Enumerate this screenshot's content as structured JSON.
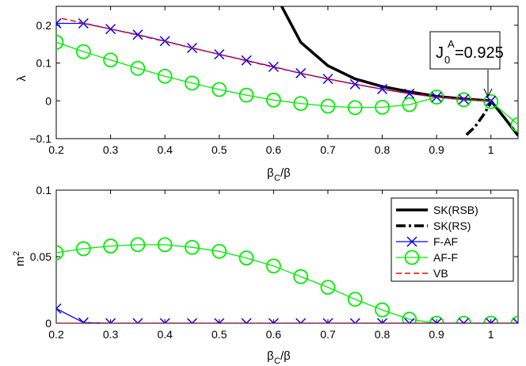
{
  "chart_data": [
    {
      "type": "line",
      "panel": "top",
      "xlabel_main": "β",
      "xlabel_sub": "C",
      "xlabel_tail": "/β",
      "ylabel": "λ",
      "xlim": [
        0.2,
        1.05
      ],
      "ylim": [
        -0.1,
        0.25
      ],
      "xticks": [
        0.2,
        0.3,
        0.4,
        0.5,
        0.6,
        0.7,
        0.8,
        0.9,
        1
      ],
      "xtick_labels": [
        "0.2",
        "0.3",
        "0.4",
        "0.5",
        "0.6",
        "0.7",
        "0.8",
        "0.9",
        "1"
      ],
      "yticks": [
        -0.1,
        0,
        0.1,
        0.2
      ],
      "ytick_labels": [
        "−0.1",
        "0",
        "0.1",
        "0.2"
      ],
      "annotation": {
        "main": "J",
        "sub": "0",
        "sup": "A",
        "tail": "=0.925",
        "x": 1.0,
        "y": 0.0,
        "text_x": 0.975,
        "text_y": 0.19
      },
      "series": [
        {
          "name": "SK(RSB)",
          "style": "solid-thick",
          "color": "#000000",
          "x": [
            0.615,
            0.65,
            0.7,
            0.75,
            0.8,
            0.85,
            0.9,
            0.95,
            1.0,
            1.025,
            1.05
          ],
          "y": [
            0.25,
            0.155,
            0.093,
            0.058,
            0.038,
            0.024,
            0.012,
            0.005,
            0.0,
            -0.045,
            -0.092
          ]
        },
        {
          "name": "SK(RS)",
          "style": "dashdot-thick",
          "color": "#000000",
          "x": [
            0.955,
            0.97,
            0.985,
            1.0
          ],
          "y": [
            -0.09,
            -0.07,
            -0.04,
            -0.005
          ]
        },
        {
          "name": "F-AF",
          "style": "x-marker",
          "color": "#0000ff",
          "x": [
            0.2,
            0.25,
            0.3,
            0.35,
            0.4,
            0.45,
            0.5,
            0.55,
            0.6,
            0.65,
            0.7,
            0.75,
            0.8,
            0.85,
            0.9,
            0.95,
            1.0
          ],
          "y": [
            0.205,
            0.205,
            0.19,
            0.175,
            0.158,
            0.14,
            0.123,
            0.107,
            0.09,
            0.073,
            0.058,
            0.044,
            0.031,
            0.019,
            0.01,
            0.004,
            0.0
          ]
        },
        {
          "name": "AF-F",
          "style": "o-marker",
          "color": "#00ee00",
          "x": [
            0.2,
            0.25,
            0.3,
            0.35,
            0.4,
            0.45,
            0.5,
            0.55,
            0.6,
            0.65,
            0.7,
            0.75,
            0.8,
            0.85,
            0.9,
            0.95,
            1.0,
            1.05
          ],
          "y": [
            0.155,
            0.13,
            0.108,
            0.086,
            0.065,
            0.047,
            0.03,
            0.015,
            0.002,
            -0.007,
            -0.014,
            -0.018,
            -0.017,
            -0.01,
            0.01,
            0.003,
            -0.002,
            -0.063
          ]
        },
        {
          "name": "VB",
          "style": "dashed",
          "color": "#ff0000",
          "x": [
            0.21,
            0.25,
            0.3,
            0.35,
            0.4,
            0.45,
            0.5,
            0.55,
            0.6,
            0.65,
            0.7,
            0.75,
            0.8,
            0.85,
            0.9,
            0.95,
            1.0
          ],
          "y": [
            0.218,
            0.206,
            0.19,
            0.174,
            0.157,
            0.14,
            0.123,
            0.106,
            0.089,
            0.073,
            0.058,
            0.044,
            0.031,
            0.019,
            0.01,
            0.004,
            0.0
          ]
        }
      ]
    },
    {
      "type": "line",
      "panel": "bottom",
      "xlabel_main": "β",
      "xlabel_sub": "C",
      "xlabel_tail": "/β",
      "ylabel_main": "m",
      "ylabel_sup": "2",
      "xlim": [
        0.2,
        1.05
      ],
      "ylim": [
        0,
        0.1
      ],
      "xticks": [
        0.2,
        0.3,
        0.4,
        0.5,
        0.6,
        0.7,
        0.8,
        0.9,
        1
      ],
      "xtick_labels": [
        "0.2",
        "0.3",
        "0.4",
        "0.5",
        "0.6",
        "0.7",
        "0.8",
        "0.9",
        "1"
      ],
      "yticks": [
        0,
        0.05,
        0.1
      ],
      "ytick_labels": [
        "0",
        "0.05",
        "0.1"
      ],
      "legend_position": "top-right",
      "series": [
        {
          "name": "SK(RSB)",
          "style": "solid-thick",
          "color": "#000000",
          "x": [],
          "y": []
        },
        {
          "name": "SK(RS)",
          "style": "dashdot-thick",
          "color": "#000000",
          "x": [],
          "y": []
        },
        {
          "name": "F-AF",
          "style": "x-marker",
          "color": "#0000ff",
          "x": [
            0.2,
            0.25,
            0.3,
            0.35,
            0.4,
            0.45,
            0.5,
            0.55,
            0.6,
            0.65,
            0.7,
            0.75,
            0.8,
            0.85,
            0.9,
            0.95,
            1.0,
            1.05
          ],
          "y": [
            0.011,
            0.0005,
            0,
            0,
            0,
            0,
            0,
            0,
            0,
            0,
            0,
            0,
            0,
            0,
            0,
            0,
            0,
            0
          ]
        },
        {
          "name": "AF-F",
          "style": "o-marker",
          "color": "#00ee00",
          "x": [
            0.2,
            0.25,
            0.3,
            0.35,
            0.4,
            0.45,
            0.5,
            0.55,
            0.6,
            0.65,
            0.7,
            0.75,
            0.8,
            0.85,
            0.9,
            0.95,
            1.0,
            1.05
          ],
          "y": [
            0.053,
            0.056,
            0.058,
            0.059,
            0.059,
            0.057,
            0.054,
            0.049,
            0.043,
            0.035,
            0.027,
            0.018,
            0.01,
            0.003,
            0,
            0,
            0,
            0
          ]
        },
        {
          "name": "VB",
          "style": "dashed",
          "color": "#ff0000",
          "x": [
            0.2,
            0.25,
            0.3,
            0.4,
            0.5,
            0.6,
            0.7,
            0.8,
            0.9,
            1.0,
            1.05
          ],
          "y": [
            0,
            0,
            0,
            0,
            0,
            0,
            0,
            0,
            0,
            0,
            0
          ]
        }
      ]
    }
  ]
}
